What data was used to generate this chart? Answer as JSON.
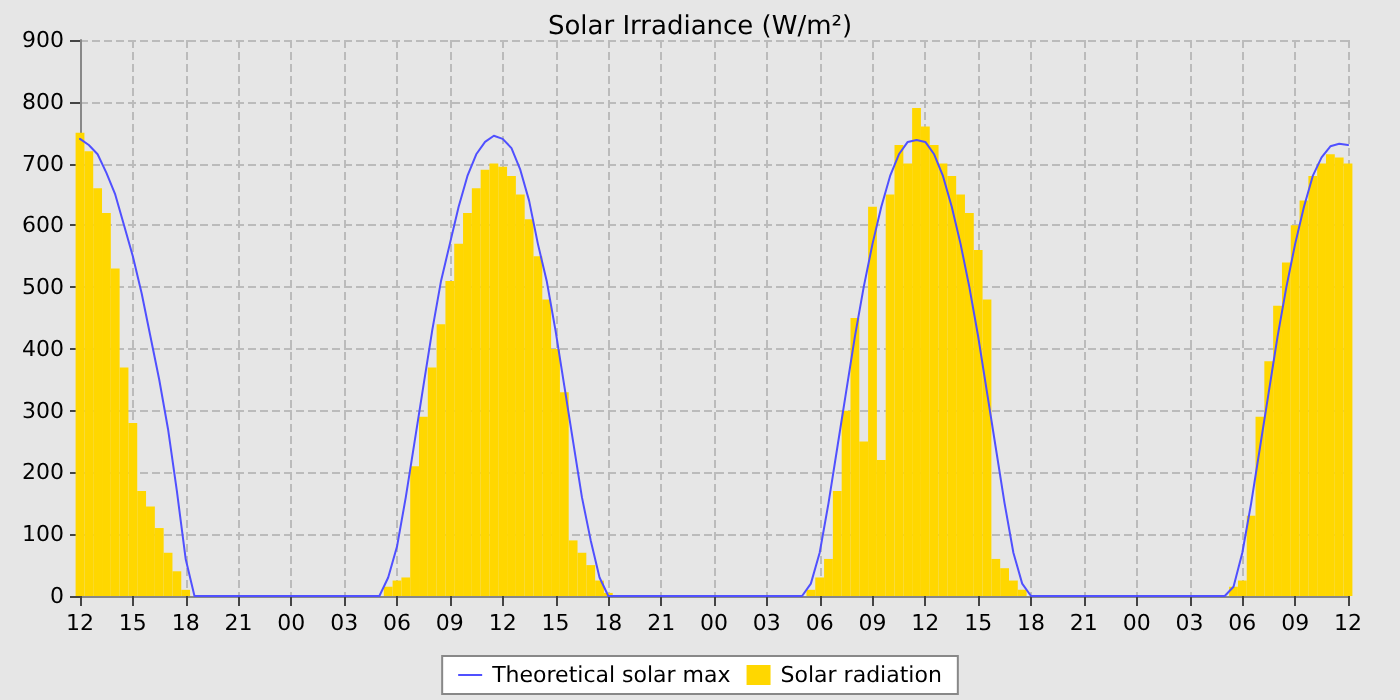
{
  "chart_data": {
    "type": "bar",
    "title": "Solar Irradiance (W/m²)",
    "ylim": [
      0,
      900
    ],
    "categories": [
      "12",
      null,
      null,
      null,
      null,
      null,
      "15",
      null,
      null,
      null,
      null,
      null,
      "18",
      null,
      null,
      null,
      null,
      null,
      "21",
      null,
      null,
      null,
      null,
      null,
      "00",
      null,
      null,
      null,
      null,
      null,
      "03",
      null,
      null,
      null,
      null,
      null,
      "06",
      null,
      null,
      null,
      null,
      null,
      "09",
      null,
      null,
      null,
      null,
      null,
      "12",
      null,
      null,
      null,
      null,
      null,
      "15",
      null,
      null,
      null,
      null,
      null,
      "18",
      null,
      null,
      null,
      null,
      null,
      "21",
      null,
      null,
      null,
      null,
      null,
      "00",
      null,
      null,
      null,
      null,
      null,
      "03",
      null,
      null,
      null,
      null,
      null,
      "06",
      null,
      null,
      null,
      null,
      null,
      "09",
      null,
      null,
      null,
      null,
      null,
      "12",
      null,
      null,
      null,
      null,
      null,
      "15",
      null,
      null,
      null,
      null,
      null,
      "18",
      null,
      null,
      null,
      null,
      null,
      "21",
      null,
      null,
      null,
      null,
      null,
      "00",
      null,
      null,
      null,
      null,
      null,
      "03",
      null,
      null,
      null,
      null,
      null,
      "06",
      null,
      null,
      null,
      null,
      null,
      "09",
      null,
      null,
      null,
      null,
      null,
      "12"
    ],
    "yticks": [
      0,
      100,
      200,
      300,
      400,
      500,
      600,
      700,
      800,
      900
    ],
    "grid": true,
    "legend": "bottom",
    "series": [
      {
        "name": "Theoretical solar max",
        "type": "line",
        "color": "#5050ff",
        "marker": "none",
        "line_style": "solid",
        "values": [
          740,
          730,
          715,
          685,
          650,
          600,
          550,
          490,
          420,
          350,
          270,
          170,
          60,
          0,
          0,
          0,
          0,
          0,
          0,
          0,
          0,
          0,
          0,
          0,
          0,
          0,
          0,
          0,
          0,
          0,
          0,
          0,
          0,
          0,
          0,
          30,
          80,
          160,
          250,
          340,
          430,
          510,
          570,
          630,
          680,
          715,
          735,
          745,
          740,
          725,
          690,
          640,
          570,
          510,
          430,
          340,
          250,
          160,
          90,
          30,
          0,
          0,
          0,
          0,
          0,
          0,
          0,
          0,
          0,
          0,
          0,
          0,
          0,
          0,
          0,
          0,
          0,
          0,
          0,
          0,
          0,
          0,
          0,
          20,
          70,
          150,
          240,
          330,
          420,
          500,
          570,
          630,
          680,
          715,
          735,
          738,
          735,
          715,
          680,
          630,
          570,
          500,
          420,
          330,
          240,
          150,
          70,
          20,
          0,
          0,
          0,
          0,
          0,
          0,
          0,
          0,
          0,
          0,
          0,
          0,
          0,
          0,
          0,
          0,
          0,
          0,
          0,
          0,
          0,
          0,
          0,
          15,
          70,
          150,
          240,
          330,
          420,
          500,
          570,
          630,
          680,
          710,
          728,
          732,
          730
        ]
      },
      {
        "name": "Solar radiation",
        "color": "#ffd700",
        "values": [
          750,
          720,
          660,
          620,
          530,
          370,
          280,
          170,
          145,
          110,
          70,
          40,
          10,
          0,
          0,
          0,
          0,
          0,
          0,
          0,
          0,
          0,
          0,
          0,
          0,
          0,
          0,
          0,
          0,
          0,
          0,
          0,
          0,
          0,
          0,
          15,
          25,
          30,
          210,
          290,
          370,
          440,
          510,
          570,
          620,
          660,
          690,
          700,
          695,
          680,
          650,
          610,
          550,
          480,
          400,
          330,
          90,
          70,
          50,
          25,
          5,
          0,
          0,
          0,
          0,
          0,
          0,
          0,
          0,
          0,
          0,
          0,
          0,
          0,
          0,
          0,
          0,
          0,
          0,
          0,
          0,
          0,
          0,
          10,
          30,
          60,
          170,
          300,
          450,
          250,
          630,
          220,
          650,
          730,
          700,
          790,
          760,
          730,
          700,
          680,
          650,
          620,
          560,
          480,
          60,
          45,
          25,
          10,
          0,
          0,
          0,
          0,
          0,
          0,
          0,
          0,
          0,
          0,
          0,
          0,
          0,
          0,
          0,
          0,
          0,
          0,
          0,
          0,
          0,
          0,
          0,
          15,
          25,
          130,
          290,
          380,
          470,
          540,
          600,
          640,
          680,
          700,
          715,
          710,
          700
        ]
      }
    ]
  }
}
